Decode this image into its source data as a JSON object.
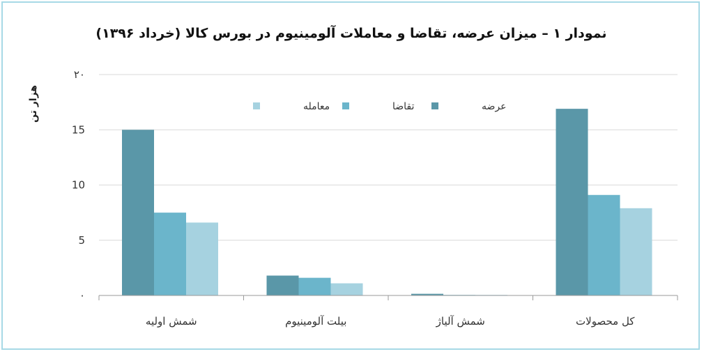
{
  "colors": {
    "frame_border": "#a7d9e6",
    "grid": "#d9d9d9",
    "axis": "#9a9a9a",
    "series": [
      "#5a97a8",
      "#6bb5cb",
      "#a6d2e0"
    ]
  },
  "chart_data": {
    "type": "bar",
    "title": "نمودار ۱ – میزان عرضه، تقاضا و معاملات آلومینیوم در بورس کالا (خرداد ۱۳۹۶)",
    "ylabel": "هزار تن",
    "xlabel": "",
    "ylim": [
      0,
      20
    ],
    "yticks": [
      {
        "value": 0,
        "label": "۰"
      },
      {
        "value": 5,
        "label": "5"
      },
      {
        "value": 10,
        "label": "10"
      },
      {
        "value": 15,
        "label": "15"
      },
      {
        "value": 20,
        "label": "۲۰"
      }
    ],
    "grid": true,
    "legend_position": "top-center",
    "categories": [
      "شمش اولیه",
      "بیلت آلومینیوم",
      "شمش آلیاژ",
      "کل محصولات"
    ],
    "series": [
      {
        "name": "عرضه",
        "color": "#5a97a8",
        "values": [
          15.0,
          1.8,
          0.15,
          16.9
        ]
      },
      {
        "name": "تقاضا",
        "color": "#6bb5cb",
        "values": [
          7.5,
          1.6,
          0.05,
          9.1
        ]
      },
      {
        "name": "معامله",
        "color": "#a6d2e0",
        "values": [
          6.6,
          1.1,
          0.05,
          7.9
        ]
      }
    ]
  }
}
